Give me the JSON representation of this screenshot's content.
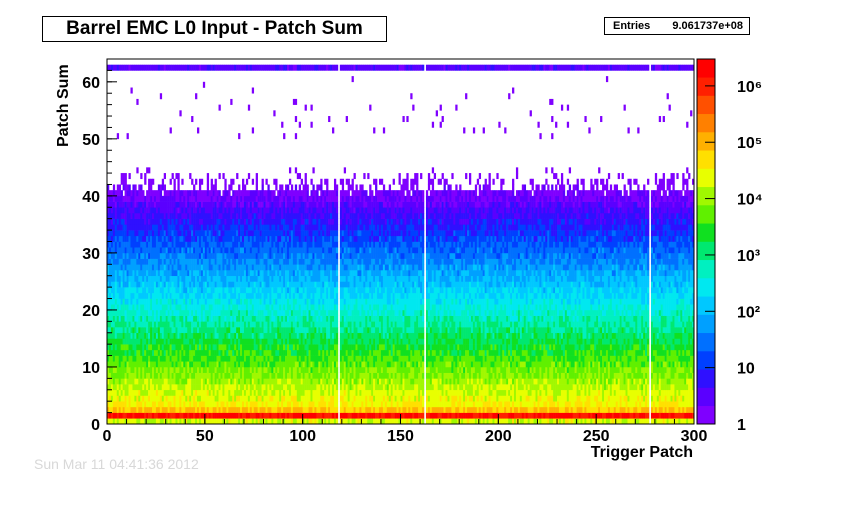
{
  "chart_data": {
    "type": "heatmap",
    "title": "Barrel EMC L0 Input - Patch Sum",
    "xlabel": "Trigger Patch",
    "ylabel": "Patch Sum",
    "xlim": [
      0,
      300
    ],
    "ylim": [
      0,
      64
    ],
    "x_ticks": [
      "0",
      "50",
      "100",
      "150",
      "200",
      "250",
      "300"
    ],
    "y_ticks": [
      "0",
      "10",
      "20",
      "30",
      "40",
      "50",
      "60"
    ],
    "z_scale": "log",
    "z_range": [
      1,
      3000000
    ],
    "z_ticks": [
      "1",
      "10",
      "10²",
      "10³",
      "10⁴",
      "10⁵",
      "10⁶"
    ],
    "stats": {
      "label": "Entries",
      "value": "9.061737e+08"
    },
    "empty_columns": [
      118,
      162,
      277
    ],
    "bins_x": 300,
    "bins_y": 64
  },
  "colors": {
    "palette": [
      "#7f00ff",
      "#5a00ff",
      "#2f10ff",
      "#0040ff",
      "#0070ff",
      "#00a0ff",
      "#00c8ff",
      "#00e8f0",
      "#00f0c0",
      "#00e870",
      "#10e020",
      "#60f000",
      "#a0f800",
      "#e8ff00",
      "#ffe000",
      "#ffb000",
      "#ff8000",
      "#ff5000",
      "#ff2000",
      "#ff0000"
    ]
  },
  "footer": "Sun Mar 11 04:41:36 2012"
}
